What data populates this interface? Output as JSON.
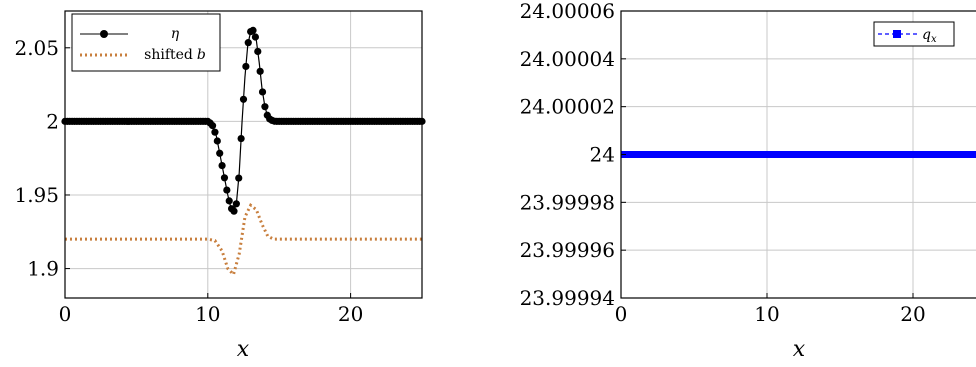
{
  "chart_data": [
    {
      "type": "line",
      "xlabel": "x",
      "ylabel": "",
      "xlim": [
        0,
        25
      ],
      "ylim": [
        1.88,
        2.075
      ],
      "xticks": [
        0,
        10,
        20
      ],
      "xtick_labels": [
        "0",
        "10",
        "20"
      ],
      "yticks": [
        1.9,
        1.95,
        2.0,
        2.05
      ],
      "ytick_labels": [
        "1.9",
        "1.95",
        "2",
        "2.05"
      ],
      "grid": true,
      "legend_position": "top-left",
      "legend": {
        "eta_symbol": "η",
        "shifted_prefix": "shifted",
        "shifted_var": "b"
      },
      "series": [
        {
          "name": "η",
          "color": "#000000",
          "marker": "circle",
          "x": [
            0,
            1,
            2,
            3,
            4,
            5,
            6,
            7,
            8,
            9,
            10,
            10.3,
            10.6,
            10.9,
            11.2,
            11.4,
            11.6,
            11.8,
            12.0,
            12.2,
            12.4,
            12.6,
            12.8,
            13.0,
            13.2,
            13.4,
            13.6,
            13.8,
            14.0,
            14.2,
            14.4,
            14.7,
            15.0,
            16,
            17,
            18,
            19,
            20,
            21,
            22,
            23,
            24,
            25
          ],
          "y": [
            2.0,
            2.0,
            2.0,
            2.0,
            2.0,
            2.0,
            2.0,
            2.0,
            2.0,
            2.0,
            2.0,
            1.998,
            1.99,
            1.975,
            1.96,
            1.95,
            1.942,
            1.938,
            1.944,
            1.965,
            2.0,
            2.03,
            2.052,
            2.061,
            2.062,
            2.055,
            2.04,
            2.022,
            2.01,
            2.003,
            2.001,
            2.0,
            2.0,
            2.0,
            2.0,
            2.0,
            2.0,
            2.0,
            2.0,
            2.0,
            2.0,
            2.0,
            2.0
          ]
        },
        {
          "name": "shifted b",
          "color": "#c87f3e",
          "dash": "dotted",
          "x": [
            0,
            1,
            2,
            3,
            4,
            5,
            6,
            7,
            8,
            9,
            10,
            10.5,
            11.0,
            11.4,
            11.8,
            12.2,
            12.6,
            13.0,
            13.4,
            13.8,
            14.2,
            14.6,
            15.0,
            16,
            17,
            18,
            19,
            20,
            21,
            22,
            23,
            24,
            25
          ],
          "y": [
            1.92,
            1.92,
            1.92,
            1.92,
            1.92,
            1.92,
            1.92,
            1.92,
            1.92,
            1.92,
            1.92,
            1.919,
            1.912,
            1.9,
            1.896,
            1.91,
            1.935,
            1.943,
            1.94,
            1.93,
            1.922,
            1.92,
            1.92,
            1.92,
            1.92,
            1.92,
            1.92,
            1.92,
            1.92,
            1.92,
            1.92,
            1.92,
            1.92
          ]
        }
      ]
    },
    {
      "type": "line",
      "xlabel": "x",
      "ylabel": "",
      "xlim": [
        0,
        25
      ],
      "ylim": [
        23.99994,
        24.00006
      ],
      "xticks": [
        0,
        10,
        20
      ],
      "xtick_labels": [
        "0",
        "10",
        "20"
      ],
      "yticks": [
        23.99994,
        23.99996,
        23.99998,
        24.0,
        24.00002,
        24.00004,
        24.00006
      ],
      "ytick_labels": [
        "23.99994",
        "23.99996",
        "23.99998",
        "24",
        "24.00002",
        "24.00004",
        "24.00006"
      ],
      "grid": true,
      "legend_position": "top-right",
      "legend": {
        "var": "q",
        "sub": "x"
      },
      "series": [
        {
          "name": "q_x",
          "color": "#0000ff",
          "marker": "square",
          "dash": "dashed",
          "x": [
            0,
            25
          ],
          "y": [
            24.0,
            24.0
          ]
        }
      ]
    }
  ]
}
